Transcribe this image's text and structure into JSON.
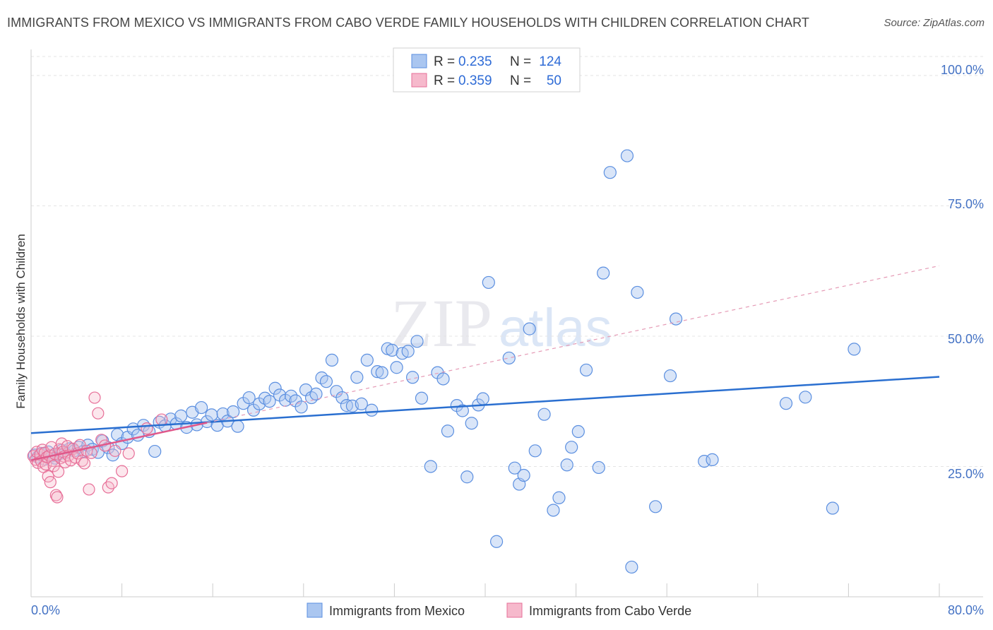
{
  "title": "IMMIGRANTS FROM MEXICO VS IMMIGRANTS FROM CABO VERDE FAMILY HOUSEHOLDS WITH CHILDREN CORRELATION CHART",
  "source": "Source: ZipAtlas.com",
  "watermark": {
    "zip": "ZIP",
    "atlas": "atlas"
  },
  "legend_box": {
    "rows": [
      {
        "r_label": "R =",
        "r_value": "0.235",
        "n_label": "N =",
        "n_value": "124"
      },
      {
        "r_label": "R =",
        "r_value": "0.359",
        "n_label": "N =",
        "n_value": "50"
      }
    ]
  },
  "colors": {
    "mexico": "#5b8fe0",
    "mexico_fill": "#aac6f0",
    "cabo": "#e76f98",
    "cabo_fill": "#f6b9cc",
    "trend_mexico": "#2a6fd0",
    "trend_cabo": "#e0588a",
    "tick": "#4472c4"
  },
  "chart_data": {
    "type": "scatter",
    "title": "IMMIGRANTS FROM MEXICO VS IMMIGRANTS FROM CABO VERDE FAMILY HOUSEHOLDS WITH CHILDREN CORRELATION CHART",
    "xlabel": "",
    "ylabel": "Family Households with Children",
    "xlim": [
      0,
      80
    ],
    "ylim": [
      0,
      105
    ],
    "x_tick_labels": [
      "0.0%",
      "80.0%"
    ],
    "y_tick_labels": [
      "25.0%",
      "50.0%",
      "75.0%",
      "100.0%"
    ],
    "y_ticks": [
      25,
      50,
      75,
      100
    ],
    "grid": true,
    "legend_position": "top-center",
    "series": [
      {
        "name": "Immigrants from Mexico",
        "R": 0.235,
        "N": 124,
        "trend": {
          "x0": 0,
          "y0": 31.4,
          "x1": 80,
          "y1": 42.2,
          "style": "solid"
        },
        "points": [
          [
            0.3,
            27.2
          ],
          [
            0.6,
            26.8
          ],
          [
            0.9,
            27.5
          ],
          [
            1.2,
            26.4
          ],
          [
            1.5,
            27.8
          ],
          [
            1.8,
            27.0
          ],
          [
            2.1,
            26.6
          ],
          [
            2.4,
            27.3
          ],
          [
            2.7,
            28.1
          ],
          [
            3.0,
            27.6
          ],
          [
            3.4,
            28.4
          ],
          [
            3.8,
            28.0
          ],
          [
            4.2,
            28.7
          ],
          [
            4.6,
            27.9
          ],
          [
            5.0,
            29.1
          ],
          [
            5.4,
            28.3
          ],
          [
            5.9,
            27.7
          ],
          [
            6.3,
            29.9
          ],
          [
            6.8,
            28.6
          ],
          [
            7.2,
            27.2
          ],
          [
            7.6,
            31.1
          ],
          [
            8.0,
            29.4
          ],
          [
            8.5,
            30.6
          ],
          [
            9.0,
            32.2
          ],
          [
            9.4,
            31.0
          ],
          [
            9.9,
            32.9
          ],
          [
            10.4,
            31.7
          ],
          [
            10.9,
            27.9
          ],
          [
            11.3,
            33.5
          ],
          [
            11.8,
            32.8
          ],
          [
            12.3,
            34.1
          ],
          [
            12.8,
            33.2
          ],
          [
            13.2,
            34.7
          ],
          [
            13.7,
            32.5
          ],
          [
            14.2,
            35.4
          ],
          [
            14.6,
            33.0
          ],
          [
            15.0,
            36.3
          ],
          [
            15.5,
            33.6
          ],
          [
            15.9,
            34.9
          ],
          [
            16.4,
            32.9
          ],
          [
            16.9,
            35.1
          ],
          [
            17.3,
            33.7
          ],
          [
            17.8,
            35.5
          ],
          [
            18.2,
            32.7
          ],
          [
            18.7,
            37.1
          ],
          [
            19.2,
            38.2
          ],
          [
            19.6,
            35.8
          ],
          [
            20.1,
            37.0
          ],
          [
            20.6,
            38.1
          ],
          [
            21.0,
            37.5
          ],
          [
            21.5,
            40.0
          ],
          [
            21.9,
            38.7
          ],
          [
            22.4,
            37.7
          ],
          [
            22.9,
            38.5
          ],
          [
            23.3,
            37.6
          ],
          [
            23.8,
            36.4
          ],
          [
            24.2,
            39.7
          ],
          [
            24.7,
            38.2
          ],
          [
            25.1,
            38.9
          ],
          [
            25.6,
            42.0
          ],
          [
            26.0,
            41.3
          ],
          [
            26.5,
            45.4
          ],
          [
            26.9,
            39.4
          ],
          [
            27.4,
            38.2
          ],
          [
            27.8,
            36.7
          ],
          [
            28.3,
            36.6
          ],
          [
            28.7,
            42.1
          ],
          [
            29.1,
            37.0
          ],
          [
            29.6,
            45.4
          ],
          [
            30.0,
            35.8
          ],
          [
            30.5,
            43.2
          ],
          [
            30.9,
            43.0
          ],
          [
            31.4,
            47.6
          ],
          [
            31.8,
            47.3
          ],
          [
            32.2,
            44.0
          ],
          [
            32.7,
            46.7
          ],
          [
            33.2,
            47.1
          ],
          [
            33.6,
            42.1
          ],
          [
            34.0,
            49.0
          ],
          [
            34.4,
            38.1
          ],
          [
            35.2,
            25.0
          ],
          [
            35.8,
            43.0
          ],
          [
            36.3,
            41.8
          ],
          [
            36.7,
            31.8
          ],
          [
            37.5,
            36.7
          ],
          [
            38.0,
            35.7
          ],
          [
            38.4,
            23.0
          ],
          [
            38.8,
            33.3
          ],
          [
            39.4,
            36.8
          ],
          [
            39.8,
            38.0
          ],
          [
            40.3,
            60.3
          ],
          [
            41.0,
            10.6
          ],
          [
            42.1,
            45.8
          ],
          [
            42.6,
            24.7
          ],
          [
            43.0,
            21.6
          ],
          [
            43.4,
            23.3
          ],
          [
            43.9,
            51.4
          ],
          [
            44.4,
            28.0
          ],
          [
            45.2,
            35.0
          ],
          [
            46.0,
            16.6
          ],
          [
            46.5,
            19.0
          ],
          [
            47.2,
            25.3
          ],
          [
            47.6,
            28.7
          ],
          [
            48.2,
            31.7
          ],
          [
            48.9,
            43.5
          ],
          [
            50.0,
            24.8
          ],
          [
            50.4,
            62.1
          ],
          [
            51.0,
            81.4
          ],
          [
            52.5,
            84.6
          ],
          [
            52.9,
            5.7
          ],
          [
            53.4,
            58.4
          ],
          [
            55.0,
            17.3
          ],
          [
            56.3,
            42.4
          ],
          [
            56.8,
            53.3
          ],
          [
            59.3,
            26.0
          ],
          [
            60.0,
            26.3
          ],
          [
            66.5,
            37.1
          ],
          [
            68.2,
            38.3
          ],
          [
            70.6,
            17.0
          ],
          [
            72.5,
            47.5
          ]
        ]
      },
      {
        "name": "Immigrants from Cabo Verde",
        "R": 0.359,
        "N": 50,
        "trend": {
          "x0": 0,
          "y0": 26.2,
          "x1": 15.5,
          "y1": 33.4,
          "style": "solid",
          "extension": {
            "x1": 80,
            "y1": 63.5,
            "style": "dashed"
          }
        },
        "points": [
          [
            0.2,
            27.0
          ],
          [
            0.4,
            26.3
          ],
          [
            0.5,
            27.8
          ],
          [
            0.6,
            25.7
          ],
          [
            0.8,
            27.3
          ],
          [
            0.9,
            26.0
          ],
          [
            1.0,
            28.2
          ],
          [
            1.1,
            24.9
          ],
          [
            1.2,
            27.6
          ],
          [
            1.3,
            25.4
          ],
          [
            1.4,
            26.8
          ],
          [
            1.5,
            23.1
          ],
          [
            1.6,
            27.1
          ],
          [
            1.7,
            22.0
          ],
          [
            1.8,
            28.7
          ],
          [
            1.9,
            26.1
          ],
          [
            2.0,
            25.1
          ],
          [
            2.1,
            27.4
          ],
          [
            2.2,
            19.5
          ],
          [
            2.3,
            19.1
          ],
          [
            2.4,
            24.0
          ],
          [
            2.5,
            28.3
          ],
          [
            2.6,
            26.6
          ],
          [
            2.7,
            29.4
          ],
          [
            2.8,
            27.8
          ],
          [
            2.9,
            26.9
          ],
          [
            3.0,
            25.8
          ],
          [
            3.2,
            28.9
          ],
          [
            3.3,
            27.1
          ],
          [
            3.5,
            26.2
          ],
          [
            3.7,
            28.4
          ],
          [
            3.9,
            26.7
          ],
          [
            4.1,
            27.5
          ],
          [
            4.3,
            29.1
          ],
          [
            4.5,
            26.1
          ],
          [
            4.7,
            25.6
          ],
          [
            4.9,
            28.0
          ],
          [
            5.1,
            20.6
          ],
          [
            5.3,
            27.6
          ],
          [
            5.6,
            38.2
          ],
          [
            5.9,
            35.2
          ],
          [
            6.2,
            30.1
          ],
          [
            6.5,
            29.0
          ],
          [
            6.8,
            21.0
          ],
          [
            7.1,
            21.8
          ],
          [
            7.4,
            28.0
          ],
          [
            8.0,
            24.1
          ],
          [
            8.6,
            27.5
          ],
          [
            10.2,
            32.3
          ],
          [
            11.5,
            34.0
          ]
        ]
      }
    ]
  },
  "bottom_legend": [
    {
      "label": "Immigrants from Mexico"
    },
    {
      "label": "Immigrants from Cabo Verde"
    }
  ]
}
